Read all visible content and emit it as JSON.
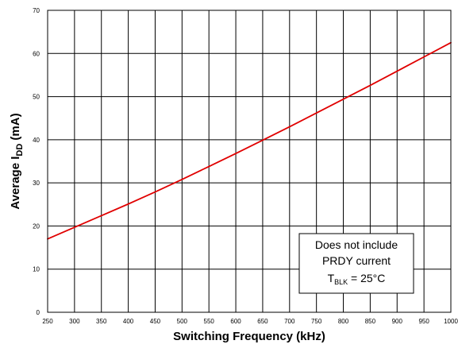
{
  "chart_data": {
    "type": "line",
    "title": "",
    "xlabel": "Switching Frequency (kHz)",
    "ylabel_prefix": "Average I",
    "ylabel_subscript": "DD",
    "ylabel_suffix": " (mA)",
    "xlim": [
      250,
      1000
    ],
    "ylim": [
      0,
      70
    ],
    "x_ticks": [
      250,
      300,
      350,
      400,
      450,
      500,
      550,
      600,
      650,
      700,
      750,
      800,
      850,
      900,
      950,
      1000
    ],
    "y_ticks": [
      0,
      10,
      20,
      30,
      40,
      50,
      60,
      70
    ],
    "grid": true,
    "series": [
      {
        "color": "#e00000",
        "x": [
          250,
          300,
          350,
          400,
          450,
          500,
          550,
          600,
          650,
          700,
          750,
          800,
          850,
          900,
          950,
          1000
        ],
        "y": [
          17,
          19.7,
          22.4,
          25.1,
          27.9,
          30.8,
          33.8,
          36.8,
          39.9,
          43,
          46.2,
          49.4,
          52.6,
          55.9,
          59.2,
          62.5
        ]
      }
    ],
    "annotation": {
      "line1": "Does not include",
      "line2": "PRDY current",
      "line3_prefix": "T",
      "line3_subscript": "BLK",
      "line3_suffix": " = 25°C"
    }
  }
}
